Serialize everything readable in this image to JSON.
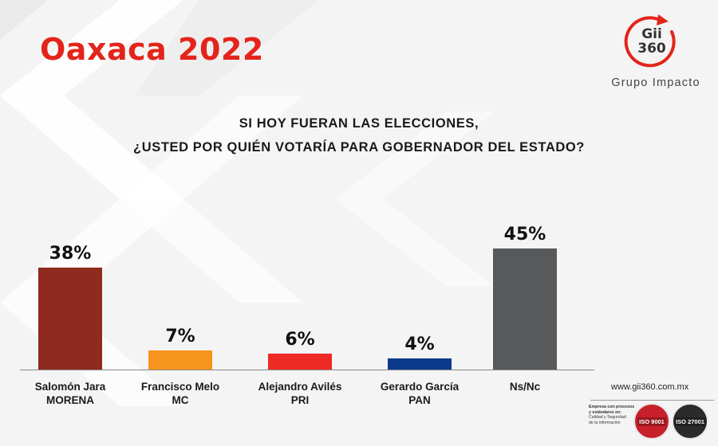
{
  "header": {
    "title": "Oaxaca 2022",
    "logo_line1": "Gii",
    "logo_line2": "360",
    "logo_sub": "Grupo Impacto"
  },
  "question": {
    "line1": "SI HOY FUERAN LAS ELECCIONES,",
    "line2": "¿USTED POR QUIÉN VOTARÍA PARA GOBERNADOR DEL ESTADO?"
  },
  "chart_data": {
    "type": "bar",
    "title": "",
    "xlabel": "",
    "ylabel": "",
    "ylim": [
      0,
      50
    ],
    "grid": false,
    "legend": "none",
    "categories": [
      {
        "name": "Salomón Jara",
        "party": "MORENA"
      },
      {
        "name": "Francisco Melo",
        "party": "MC"
      },
      {
        "name": "Alejandro Avilés",
        "party": "PRI"
      },
      {
        "name": "Gerardo García",
        "party": "PAN"
      },
      {
        "name": "Ns/Nc",
        "party": ""
      }
    ],
    "values": [
      38,
      7,
      6,
      4,
      45
    ],
    "value_labels": [
      "38%",
      "7%",
      "6%",
      "4%",
      "45%"
    ],
    "colors": [
      "#8f2a1f",
      "#f7941d",
      "#ee2a24",
      "#0b3a8c",
      "#58595b"
    ]
  },
  "footer": {
    "website": "www.gii360.com.mx",
    "cert_line1": "Empresa con procesos",
    "cert_line2": "y estándares en:",
    "cert_line3": "Calidad y Seguridad",
    "cert_line4": "de la información",
    "iso1": "ISO 9001",
    "iso2": "ISO 27001"
  },
  "colors": {
    "title": "#e3241b",
    "accent": "#e3241b"
  }
}
